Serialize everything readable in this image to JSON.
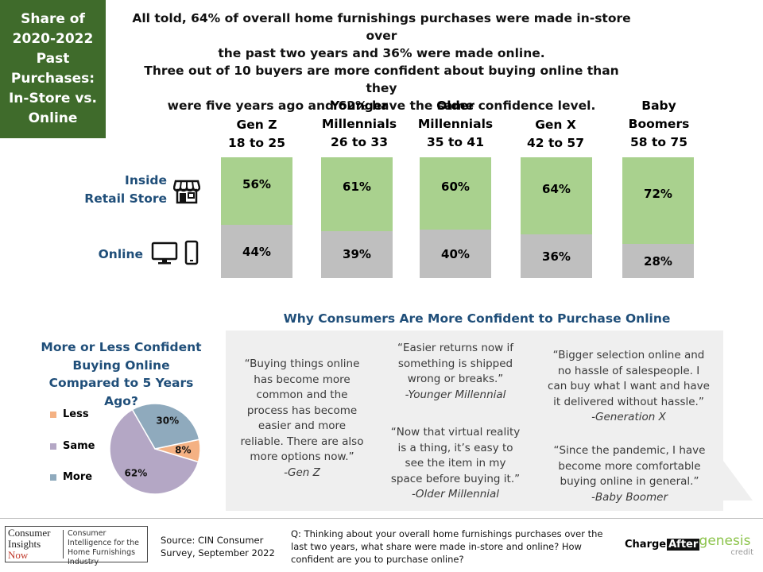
{
  "title_box": "Share of\n2020-2022\nPast\nPurchases:\nIn-Store vs.\nOnline",
  "headline": [
    "All told, 64% of overall home furnishings purchases were made in-store over",
    "the past two years and 36% were made online.",
    "Three out of 10 buyers are more confident about buying online than they",
    "were five years ago and 62% have the same confidence level."
  ],
  "row_labels": {
    "store": "Inside\nRetail Store",
    "online": "Online"
  },
  "chart_data": [
    {
      "type": "bar",
      "stacked": true,
      "percent_stacked": true,
      "categories": [
        "Gen Z\n18 to 25",
        "Younger\nMillennials\n26 to 33",
        "Older\nMillennials\n35 to 41",
        "Gen X\n42 to 57",
        "Baby\nBoomers\n58 to 75"
      ],
      "series": [
        {
          "name": "Inside Retail Store",
          "values": [
            56,
            61,
            60,
            64,
            72
          ],
          "color": "#a9d18e"
        },
        {
          "name": "Online",
          "values": [
            44,
            39,
            40,
            36,
            28
          ],
          "color": "#bfbfbf"
        }
      ],
      "data_labels": [
        "56%",
        "61%",
        "60%",
        "64%",
        "72%",
        "44%",
        "39%",
        "40%",
        "36%",
        "28%"
      ]
    },
    {
      "type": "pie",
      "title": "More or Less Confident\nBuying Online\nCompared to 5 Years Ago?",
      "categories": [
        "Less",
        "Same",
        "More"
      ],
      "values": [
        8,
        62,
        30
      ],
      "labels": [
        "8%",
        "62%",
        "30%"
      ],
      "colors": [
        "#f4b183",
        "#b4a7c5",
        "#8faabd"
      ],
      "legend": "left"
    }
  ],
  "why_title": "Why Consumers Are More Confident to Purchase Online",
  "quotes": [
    {
      "text": "“Buying things online has become more common and the process has become easier and more reliable. There are also more options now.”",
      "attr": "-Gen Z"
    },
    {
      "text": "“Easier returns now if something is shipped wrong or breaks.”",
      "attr": "-Younger Millennial"
    },
    {
      "text": "“Now that virtual reality is a thing, it’s easy to see the item in my space before buying it.”",
      "attr": "-Older Millennial"
    },
    {
      "text": "“Bigger selection online and no hassle of salespeople. I can buy what I want and have it delivered without hassle.”",
      "attr": "-Generation X"
    },
    {
      "text": "“Since the pandemic, I have become more comfortable buying online in general.”",
      "attr": "-Baby Boomer"
    }
  ],
  "footer": {
    "logo_left": [
      "Consumer",
      "Insights",
      "Now"
    ],
    "logo_right": "Consumer Intelligence for the Home Furnishings Industry",
    "source": "Source: CIN Consumer Survey, September  2022",
    "question": "Q: Thinking about your overall home furnishings purchases over the last two years, what share were  made in-store and online? How confident are you to purchase online?",
    "chargeafter": [
      "Charge",
      "After"
    ],
    "genesis": [
      "genesis",
      "credit"
    ]
  },
  "icons": [
    "storefront-icon",
    "desktop-monitor-icon",
    "smartphone-icon"
  ]
}
